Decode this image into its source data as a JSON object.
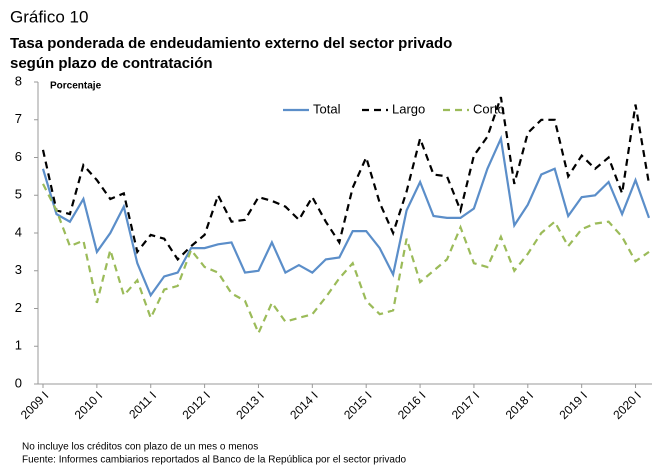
{
  "chart_data": {
    "type": "line",
    "label": "Gráfico 10",
    "title": [
      "Tasa ponderada de endeudamiento externo del sector privado",
      "según plazo de contratación"
    ],
    "y_label": "Porcentaje",
    "notes": [
      "No incluye los créditos con plazo de un mes o menos",
      "Fuente: Informes cambiarios reportados al Banco de la República por el sector privado"
    ],
    "categories": [
      "2009 I",
      null,
      null,
      null,
      "2010 I",
      null,
      null,
      null,
      "2011 I",
      null,
      null,
      null,
      "2012 I",
      null,
      null,
      null,
      "2013 I",
      null,
      null,
      null,
      "2014 I",
      null,
      null,
      null,
      "2015 I",
      null,
      null,
      null,
      "2016 I",
      null,
      null,
      null,
      "2017 I",
      null,
      null,
      null,
      "2018 I",
      null,
      null,
      null,
      "2019 I",
      null,
      null,
      null,
      "2020 I",
      null
    ],
    "series": [
      {
        "name": "Total",
        "color": "#5b8ec9",
        "dash": "solid",
        "values": [
          5.7,
          4.5,
          4.3,
          4.9,
          3.5,
          4.0,
          4.7,
          3.2,
          2.35,
          2.85,
          2.95,
          3.6,
          3.6,
          3.7,
          3.75,
          2.95,
          3.0,
          3.75,
          2.95,
          3.15,
          2.95,
          3.3,
          3.35,
          4.05,
          4.05,
          3.6,
          2.9,
          4.6,
          5.35,
          4.45,
          4.4,
          4.4,
          4.65,
          5.7,
          6.5,
          4.2,
          4.75,
          5.55,
          5.7,
          4.45,
          4.95,
          5.0,
          5.35,
          4.5,
          5.4,
          4.4
        ]
      },
      {
        "name": "Largo",
        "color": "#000000",
        "dash": "dashed",
        "values": [
          6.2,
          4.6,
          4.5,
          5.8,
          5.4,
          4.9,
          5.05,
          3.5,
          3.95,
          3.85,
          3.3,
          3.65,
          3.95,
          5.0,
          4.3,
          4.35,
          4.95,
          4.85,
          4.7,
          4.35,
          4.95,
          4.3,
          3.75,
          5.2,
          6.0,
          4.8,
          4.0,
          5.1,
          6.5,
          5.55,
          5.5,
          4.6,
          6.05,
          6.55,
          7.6,
          5.3,
          6.65,
          7.0,
          7.0,
          5.5,
          6.05,
          5.7,
          6.0,
          5.05,
          7.4,
          5.3
        ]
      },
      {
        "name": "Corto",
        "color": "#9bbb59",
        "dash": "dashed",
        "values": [
          5.3,
          4.6,
          3.65,
          3.8,
          2.15,
          3.55,
          2.35,
          2.75,
          1.75,
          2.5,
          2.6,
          3.55,
          3.1,
          2.95,
          2.4,
          2.2,
          1.35,
          2.15,
          1.65,
          1.75,
          1.85,
          2.3,
          2.8,
          3.2,
          2.2,
          1.85,
          1.95,
          3.85,
          2.7,
          3.0,
          3.3,
          4.15,
          3.2,
          3.1,
          3.9,
          3.0,
          3.45,
          4.0,
          4.3,
          3.65,
          4.1,
          4.25,
          4.3,
          3.9,
          3.25,
          3.5
        ]
      }
    ],
    "ylim": [
      0,
      8
    ],
    "yticks": [
      0,
      1,
      2,
      3,
      4,
      5,
      6,
      7,
      8
    ],
    "grid": false,
    "legend": "top"
  }
}
